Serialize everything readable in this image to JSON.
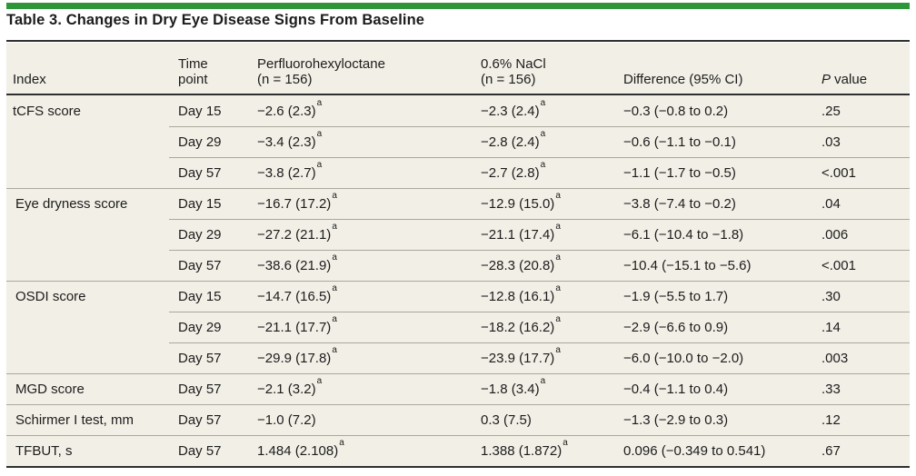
{
  "title": "Table 3. Changes in Dry Eye Disease Signs From Baseline",
  "colors": {
    "accent_green": "#2c9639",
    "table_background": "#f2efe6",
    "heavy_rule": "#2f2f2f",
    "row_divider": "#aaa89d",
    "text": "#1c1c1c"
  },
  "table": {
    "columns": [
      {
        "lines": [
          "Index"
        ],
        "italic_prefix": false
      },
      {
        "lines": [
          "Time",
          "point"
        ],
        "italic_prefix": false
      },
      {
        "lines": [
          "Perfluorohexyloctane",
          "(n = 156)"
        ],
        "italic_prefix": false
      },
      {
        "lines": [
          "0.6% NaCl",
          "(n = 156)"
        ],
        "italic_prefix": false
      },
      {
        "lines": [
          "Difference (95% CI)"
        ],
        "italic_prefix": false
      },
      {
        "lines": [
          "P value"
        ],
        "italic_prefix": true
      }
    ],
    "rows": [
      {
        "index": "tCFS score",
        "time": "Day 15",
        "pfho": {
          "text": "−2.6 (2.3)",
          "sup": "a"
        },
        "nacl": {
          "text": "−2.3 (2.4)",
          "sup": "a"
        },
        "diff": "−0.3 (−0.8 to 0.2)",
        "p": ".25",
        "divider": "none"
      },
      {
        "index": "",
        "time": "Day 29",
        "pfho": {
          "text": "−3.4 (2.3)",
          "sup": "a"
        },
        "nacl": {
          "text": "−2.8 (2.4)",
          "sup": "a"
        },
        "diff": "−0.6 (−1.1 to −0.1)",
        "p": ".03",
        "divider": "indent"
      },
      {
        "index": "",
        "time": "Day 57",
        "pfho": {
          "text": "−3.8 (2.7)",
          "sup": "a"
        },
        "nacl": {
          "text": "−2.7 (2.8)",
          "sup": "a"
        },
        "diff": "−1.1 (−1.7 to −0.5)",
        "p": "<.001",
        "divider": "indent"
      },
      {
        "index": "Eye dryness score",
        "time": "Day 15",
        "pfho": {
          "text": "−16.7 (17.2)",
          "sup": "a"
        },
        "nacl": {
          "text": "−12.9 (15.0)",
          "sup": "a"
        },
        "diff": "−3.8 (−7.4 to −0.2)",
        "p": ".04",
        "divider": "full"
      },
      {
        "index": "",
        "time": "Day 29",
        "pfho": {
          "text": "−27.2 (21.1)",
          "sup": "a"
        },
        "nacl": {
          "text": "−21.1 (17.4)",
          "sup": "a"
        },
        "diff": "−6.1 (−10.4 to −1.8)",
        "p": ".006",
        "divider": "indent"
      },
      {
        "index": "",
        "time": "Day 57",
        "pfho": {
          "text": "−38.6 (21.9)",
          "sup": "a"
        },
        "nacl": {
          "text": "−28.3 (20.8)",
          "sup": "a"
        },
        "diff": "−10.4 (−15.1 to −5.6)",
        "p": "<.001",
        "divider": "indent"
      },
      {
        "index": "OSDI score",
        "time": "Day 15",
        "pfho": {
          "text": "−14.7 (16.5)",
          "sup": "a"
        },
        "nacl": {
          "text": "−12.8 (16.1)",
          "sup": "a"
        },
        "diff": "−1.9 (−5.5 to 1.7)",
        "p": ".30",
        "divider": "full"
      },
      {
        "index": "",
        "time": "Day 29",
        "pfho": {
          "text": "−21.1 (17.7)",
          "sup": "a"
        },
        "nacl": {
          "text": "−18.2 (16.2)",
          "sup": "a"
        },
        "diff": "−2.9 (−6.6 to 0.9)",
        "p": ".14",
        "divider": "indent"
      },
      {
        "index": "",
        "time": "Day 57",
        "pfho": {
          "text": "−29.9 (17.8)",
          "sup": "a"
        },
        "nacl": {
          "text": "−23.9 (17.7)",
          "sup": "a"
        },
        "diff": "−6.0 (−10.0 to −2.0)",
        "p": ".003",
        "divider": "indent"
      },
      {
        "index": "MGD score",
        "time": "Day 57",
        "pfho": {
          "text": "−2.1 (3.2)",
          "sup": "a"
        },
        "nacl": {
          "text": "−1.8 (3.4)",
          "sup": "a"
        },
        "diff": "−0.4 (−1.1 to 0.4)",
        "p": ".33",
        "divider": "full"
      },
      {
        "index": "Schirmer I test, mm",
        "time": "Day 57",
        "pfho": "−1.0 (7.2)",
        "nacl": "0.3 (7.5)",
        "diff": "−1.3 (−2.9 to 0.3)",
        "p": ".12",
        "divider": "full"
      },
      {
        "index": "TFBUT, s",
        "time": "Day 57",
        "pfho": {
          "text": "1.484 (2.108)",
          "sup": "a"
        },
        "nacl": {
          "text": "1.388 (1.872)",
          "sup": "a"
        },
        "diff": "0.096 (−0.349 to 0.541)",
        "p": ".67",
        "divider": "full"
      }
    ]
  }
}
